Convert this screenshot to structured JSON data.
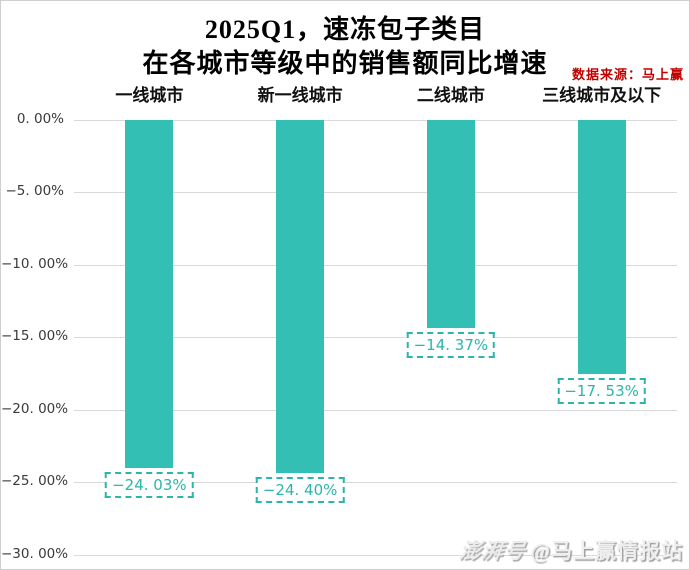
{
  "title": {
    "line1": "2025Q1，速冻包子类目",
    "line2": "在各城市等级中的销售额同比增速"
  },
  "source_note": "数据来源：马上赢",
  "watermark": {
    "logo": "澎湃号",
    "handle": "@马上赢情报站"
  },
  "colors": {
    "bar": "#33bfb3",
    "value_label": "#2cb5aa",
    "grid": "#d9d9d9",
    "source": "#c00000",
    "tick_text": "#3a3a3a"
  },
  "chart_data": {
    "type": "bar",
    "title": "2025Q1，速冻包子类目 在各城市等级中的销售额同比增速",
    "categories": [
      "一线城市",
      "新一线城市",
      "二线城市",
      "三线城市及以下"
    ],
    "values": [
      -24.03,
      -24.4,
      -14.37,
      -17.53
    ],
    "value_labels": [
      "−24. 03%",
      "−24. 40%",
      "−14. 37%",
      "−17. 53%"
    ],
    "y_ticks": [
      0,
      -5,
      -10,
      -15,
      -20,
      -25,
      -30
    ],
    "y_tick_labels": [
      "0. 00%",
      "−5. 00%",
      "−10. 00%",
      "−15. 00%",
      "−20. 00%",
      "−25. 00%",
      "−30. 00%"
    ],
    "xlabel": "",
    "ylabel": "",
    "ylim": [
      -30,
      0
    ],
    "grid": true,
    "legend": false
  }
}
